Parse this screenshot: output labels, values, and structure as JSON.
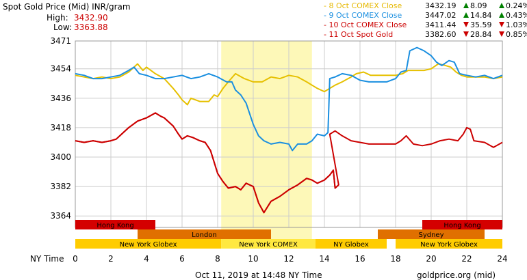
{
  "header": {
    "title": "Spot Gold Price (Mid) INR/gram",
    "high_label": "High:",
    "high_value": "3432.90",
    "low_label": "Low:",
    "low_value": "3363.88",
    "colors": {
      "high": "#cc0000",
      "low": "#cc0000"
    }
  },
  "legend": [
    {
      "label": "- 8 Oct COMEX Close",
      "price": "3432.19",
      "change": "8.09",
      "pct": "0.24%",
      "direction": "up",
      "color": "#e6b800"
    },
    {
      "label": "- 9 Oct COMEX Close",
      "price": "3447.02",
      "change": "14.84",
      "pct": "0.43%",
      "direction": "up",
      "color": "#1a8fe0"
    },
    {
      "label": "- 10 Oct COMEX Close",
      "price": "3411.44",
      "change": "35.59",
      "pct": "1.03%",
      "direction": "down",
      "color": "#cc0000"
    },
    {
      "label": "- 11 Oct Spot Gold",
      "price": "3382.60",
      "change": "28.84",
      "pct": "0.85%",
      "direction": "down",
      "color": "#cc0000"
    }
  ],
  "footer": {
    "timestamp": "Oct 11, 2019 at 14:48 NY Time",
    "source": "goldprice.org (mid)",
    "x_axis_label": "NY Time"
  },
  "colors": {
    "gold_line": "#e6c000",
    "blue_line": "#1a8fe0",
    "red_line": "#cc0000",
    "comex_highlight": "#fdf8b8",
    "grid": "#cccccc",
    "up_arrow": "#008000",
    "down_arrow": "#cc0000"
  },
  "sessions": [
    {
      "label": "Hong Kong",
      "start": 0,
      "end": 4.5,
      "row": 0,
      "color": "#d40000"
    },
    {
      "label": "Hong Kong",
      "start": 19.5,
      "end": 24,
      "row": 0,
      "color": "#d40000"
    },
    {
      "label": "London",
      "start": 3.5,
      "end": 11,
      "row": 1,
      "color": "#e07000"
    },
    {
      "label": "Sydney",
      "start": 17,
      "end": 23,
      "row": 1,
      "color": "#e07000"
    },
    {
      "label": "New York Globex",
      "start": 0,
      "end": 8.2,
      "row": 2,
      "color": "#ffcc00"
    },
    {
      "label": "New York COMEX",
      "start": 8.2,
      "end": 13.5,
      "row": 2,
      "color": "#ffe840"
    },
    {
      "label": "NY Globex",
      "start": 13.5,
      "end": 17.5,
      "row": 2,
      "color": "#ffcc00"
    },
    {
      "label": "New York Globex",
      "start": 18,
      "end": 24,
      "row": 2,
      "color": "#ffcc00"
    }
  ],
  "chart_data": {
    "type": "line",
    "xlim": [
      0,
      24
    ],
    "ylim": [
      3357,
      3471
    ],
    "x_ticks": [
      0,
      2,
      4,
      6,
      8,
      10,
      12,
      14,
      16,
      18,
      20,
      22,
      24
    ],
    "y_ticks": [
      3364,
      3382,
      3400,
      3418,
      3436,
      3454,
      3471
    ],
    "comex_highlight": [
      8.2,
      13.3
    ],
    "series": [
      {
        "name": "8 Oct COMEX Close",
        "color": "#e6c000",
        "points": [
          [
            0,
            3450
          ],
          [
            0.5,
            3449
          ],
          [
            1,
            3448
          ],
          [
            1.5,
            3449
          ],
          [
            2,
            3448
          ],
          [
            2.5,
            3449
          ],
          [
            3,
            3452
          ],
          [
            3.5,
            3457
          ],
          [
            3.8,
            3453
          ],
          [
            4,
            3455
          ],
          [
            4.5,
            3451
          ],
          [
            5,
            3448
          ],
          [
            5.5,
            3442
          ],
          [
            5.8,
            3438
          ],
          [
            6,
            3435
          ],
          [
            6.3,
            3432
          ],
          [
            6.5,
            3436
          ],
          [
            7,
            3434
          ],
          [
            7.5,
            3434
          ],
          [
            7.8,
            3438
          ],
          [
            8,
            3437
          ],
          [
            8.3,
            3442
          ],
          [
            8.6,
            3446
          ],
          [
            9,
            3451
          ],
          [
            9.5,
            3448
          ],
          [
            10,
            3446
          ],
          [
            10.5,
            3446
          ],
          [
            11,
            3449
          ],
          [
            11.5,
            3448
          ],
          [
            12,
            3450
          ],
          [
            12.5,
            3449
          ],
          [
            13,
            3446
          ],
          [
            13.3,
            3444
          ],
          [
            13.6,
            3442
          ],
          [
            14,
            3440
          ],
          [
            14.3,
            3442
          ],
          [
            14.6,
            3444
          ],
          [
            15,
            3446
          ],
          [
            15.5,
            3449
          ],
          [
            15.8,
            3451
          ],
          [
            16.2,
            3452
          ],
          [
            16.6,
            3450
          ],
          [
            17,
            3450
          ],
          [
            17.5,
            3450
          ],
          [
            18,
            3450
          ],
          [
            18.4,
            3451
          ],
          [
            18.7,
            3453
          ],
          [
            19.2,
            3453
          ],
          [
            19.6,
            3453
          ],
          [
            20,
            3454
          ],
          [
            20.4,
            3457
          ],
          [
            20.8,
            3456
          ],
          [
            21.1,
            3455
          ],
          [
            21.4,
            3452
          ],
          [
            21.7,
            3450
          ],
          [
            22,
            3449
          ],
          [
            22.5,
            3449
          ],
          [
            23,
            3449
          ],
          [
            23.5,
            3448
          ],
          [
            24,
            3449
          ]
        ]
      },
      {
        "name": "9 Oct COMEX Close",
        "color": "#1a8fe0",
        "points": [
          [
            0,
            3451
          ],
          [
            0.5,
            3450
          ],
          [
            1,
            3448
          ],
          [
            1.5,
            3448
          ],
          [
            2,
            3449
          ],
          [
            2.5,
            3450
          ],
          [
            3,
            3453
          ],
          [
            3.3,
            3455
          ],
          [
            3.6,
            3451
          ],
          [
            4,
            3450
          ],
          [
            4.5,
            3448
          ],
          [
            5,
            3448
          ],
          [
            5.5,
            3449
          ],
          [
            6,
            3450
          ],
          [
            6.5,
            3448
          ],
          [
            7,
            3449
          ],
          [
            7.5,
            3451
          ],
          [
            8,
            3449
          ],
          [
            8.5,
            3446
          ],
          [
            8.8,
            3446
          ],
          [
            9,
            3441
          ],
          [
            9.3,
            3438
          ],
          [
            9.6,
            3433
          ],
          [
            10,
            3420
          ],
          [
            10.3,
            3413
          ],
          [
            10.6,
            3410
          ],
          [
            11,
            3408
          ],
          [
            11.5,
            3409
          ],
          [
            12,
            3408
          ],
          [
            12.2,
            3404
          ],
          [
            12.5,
            3408
          ],
          [
            13,
            3408
          ],
          [
            13.3,
            3410
          ],
          [
            13.6,
            3414
          ],
          [
            14,
            3413
          ],
          [
            14.2,
            3415
          ],
          [
            14.3,
            3448
          ],
          [
            14.6,
            3449
          ],
          [
            15,
            3451
          ],
          [
            15.5,
            3450
          ],
          [
            16,
            3447
          ],
          [
            16.5,
            3446
          ],
          [
            17,
            3446
          ],
          [
            17.5,
            3446
          ],
          [
            18,
            3448
          ],
          [
            18.3,
            3452
          ],
          [
            18.6,
            3453
          ],
          [
            18.8,
            3465
          ],
          [
            19.2,
            3467
          ],
          [
            19.6,
            3465
          ],
          [
            20,
            3462
          ],
          [
            20.3,
            3458
          ],
          [
            20.6,
            3456
          ],
          [
            21,
            3459
          ],
          [
            21.3,
            3458
          ],
          [
            21.6,
            3451
          ],
          [
            22,
            3450
          ],
          [
            22.5,
            3449
          ],
          [
            23,
            3450
          ],
          [
            23.5,
            3448
          ],
          [
            24,
            3450
          ]
        ]
      },
      {
        "name": "10 Oct COMEX Close",
        "color": "#cc0000",
        "points": [
          [
            0,
            3410
          ],
          [
            0.5,
            3409
          ],
          [
            1,
            3410
          ],
          [
            1.5,
            3409
          ],
          [
            2,
            3410
          ],
          [
            2.3,
            3411
          ],
          [
            2.6,
            3414
          ],
          [
            3,
            3418
          ],
          [
            3.5,
            3422
          ],
          [
            4,
            3424
          ],
          [
            4.5,
            3427
          ],
          [
            4.8,
            3425
          ],
          [
            5,
            3424
          ],
          [
            5.5,
            3419
          ],
          [
            5.8,
            3414
          ],
          [
            6,
            3411
          ],
          [
            6.3,
            3413
          ],
          [
            6.6,
            3412
          ],
          [
            7,
            3410
          ],
          [
            7.3,
            3409
          ],
          [
            7.6,
            3404
          ],
          [
            8,
            3390
          ],
          [
            8.3,
            3385
          ],
          [
            8.6,
            3381
          ],
          [
            9,
            3382
          ],
          [
            9.3,
            3380
          ],
          [
            9.6,
            3384
          ],
          [
            10,
            3382
          ],
          [
            10.3,
            3372
          ],
          [
            10.6,
            3366
          ],
          [
            11,
            3373
          ],
          [
            11.5,
            3376
          ],
          [
            12,
            3380
          ],
          [
            12.5,
            3383
          ],
          [
            13,
            3387
          ],
          [
            13.3,
            3386
          ],
          [
            13.6,
            3384
          ],
          [
            14,
            3386
          ],
          [
            14.3,
            3389
          ],
          [
            14.5,
            3392
          ],
          [
            14.6,
            3381
          ],
          [
            14.8,
            3383
          ],
          [
            14.3,
            3414
          ],
          [
            14.6,
            3416
          ],
          [
            15,
            3413
          ],
          [
            15.5,
            3410
          ],
          [
            16,
            3409
          ],
          [
            16.5,
            3408
          ],
          [
            17,
            3408
          ],
          [
            17.5,
            3408
          ],
          [
            18,
            3408
          ],
          [
            18.3,
            3410
          ],
          [
            18.6,
            3413
          ],
          [
            19,
            3408
          ],
          [
            19.5,
            3407
          ],
          [
            20,
            3408
          ],
          [
            20.5,
            3410
          ],
          [
            21,
            3411
          ],
          [
            21.5,
            3410
          ],
          [
            21.8,
            3414
          ],
          [
            22,
            3418
          ],
          [
            22.2,
            3417
          ],
          [
            22.4,
            3410
          ],
          [
            23,
            3409
          ],
          [
            23.5,
            3406
          ],
          [
            24,
            3409
          ]
        ]
      },
      {
        "name": "11 Oct Spot Gold",
        "color": "#cc0000",
        "points": [
          [
            0,
            3410
          ],
          [
            0.5,
            3409
          ],
          [
            1,
            3410
          ],
          [
            1.5,
            3409
          ],
          [
            2,
            3410
          ],
          [
            2.3,
            3411
          ],
          [
            2.6,
            3414
          ],
          [
            3,
            3418
          ],
          [
            3.5,
            3422
          ],
          [
            4,
            3424
          ],
          [
            4.5,
            3427
          ],
          [
            4.8,
            3425
          ],
          [
            5,
            3424
          ],
          [
            5.5,
            3419
          ],
          [
            5.8,
            3414
          ],
          [
            6,
            3411
          ],
          [
            6.3,
            3413
          ],
          [
            6.6,
            3412
          ],
          [
            7,
            3410
          ],
          [
            7.3,
            3409
          ],
          [
            7.6,
            3404
          ],
          [
            8,
            3390
          ],
          [
            8.3,
            3385
          ],
          [
            8.6,
            3381
          ],
          [
            9,
            3382
          ],
          [
            9.3,
            3380
          ],
          [
            9.6,
            3384
          ],
          [
            10,
            3382
          ],
          [
            10.3,
            3372
          ],
          [
            10.6,
            3366
          ],
          [
            11,
            3373
          ],
          [
            11.5,
            3376
          ],
          [
            12,
            3380
          ],
          [
            12.5,
            3383
          ],
          [
            13,
            3387
          ],
          [
            13.3,
            3386
          ],
          [
            13.6,
            3384
          ],
          [
            14,
            3386
          ],
          [
            14.3,
            3389
          ],
          [
            14.5,
            3392
          ],
          [
            14.6,
            3381
          ],
          [
            14.8,
            3383
          ]
        ]
      }
    ]
  }
}
